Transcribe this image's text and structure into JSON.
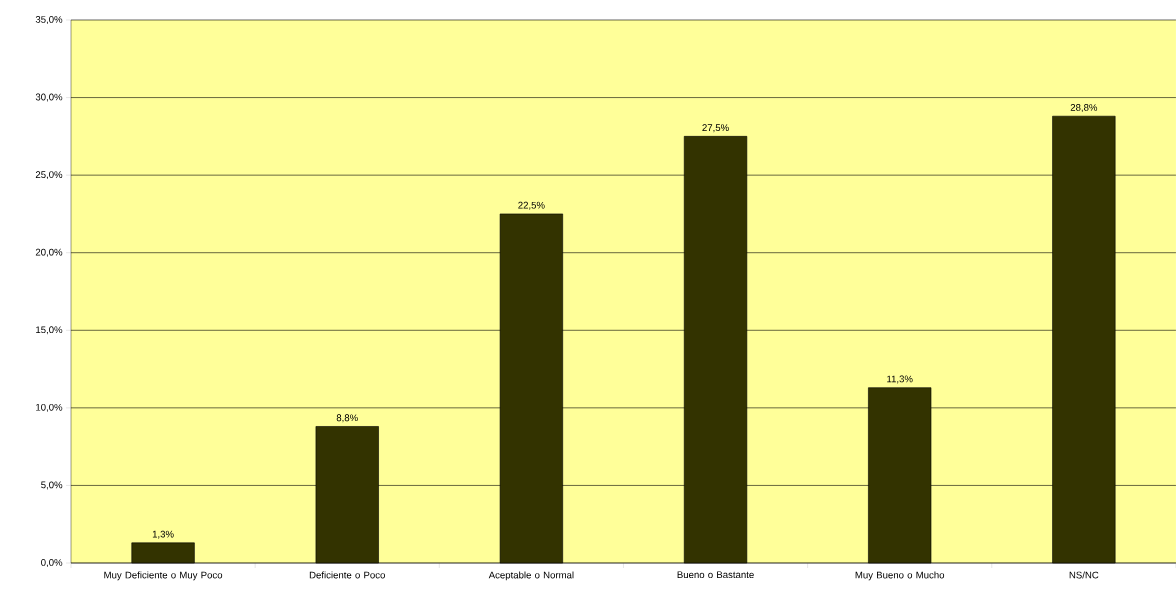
{
  "chart_data": {
    "type": "bar",
    "categories": [
      "Muy Deficiente o Muy Poco",
      "Deficiente o Poco",
      "Aceptable o Normal",
      "Bueno o Bastante",
      "Muy Bueno o Mucho",
      "NS/NC"
    ],
    "values": [
      1.3,
      8.8,
      22.5,
      27.5,
      11.3,
      28.8
    ],
    "value_labels": [
      "1,3%",
      "8,8%",
      "22,5%",
      "27,5%",
      "11,3%",
      "28,8%"
    ],
    "color": "#333300",
    "ylim": [
      0,
      35
    ],
    "yticks": [
      {
        "value": 0,
        "label": "0,0%"
      },
      {
        "value": 5,
        "label": "5,0%"
      },
      {
        "value": 10,
        "label": "10,0%"
      },
      {
        "value": 15,
        "label": "15,0%"
      },
      {
        "value": 20,
        "label": "20,0%"
      },
      {
        "value": 25,
        "label": "25,0%"
      },
      {
        "value": 30,
        "label": "30,0%"
      },
      {
        "value": 35,
        "label": "35,0%"
      }
    ],
    "grid": "y"
  }
}
